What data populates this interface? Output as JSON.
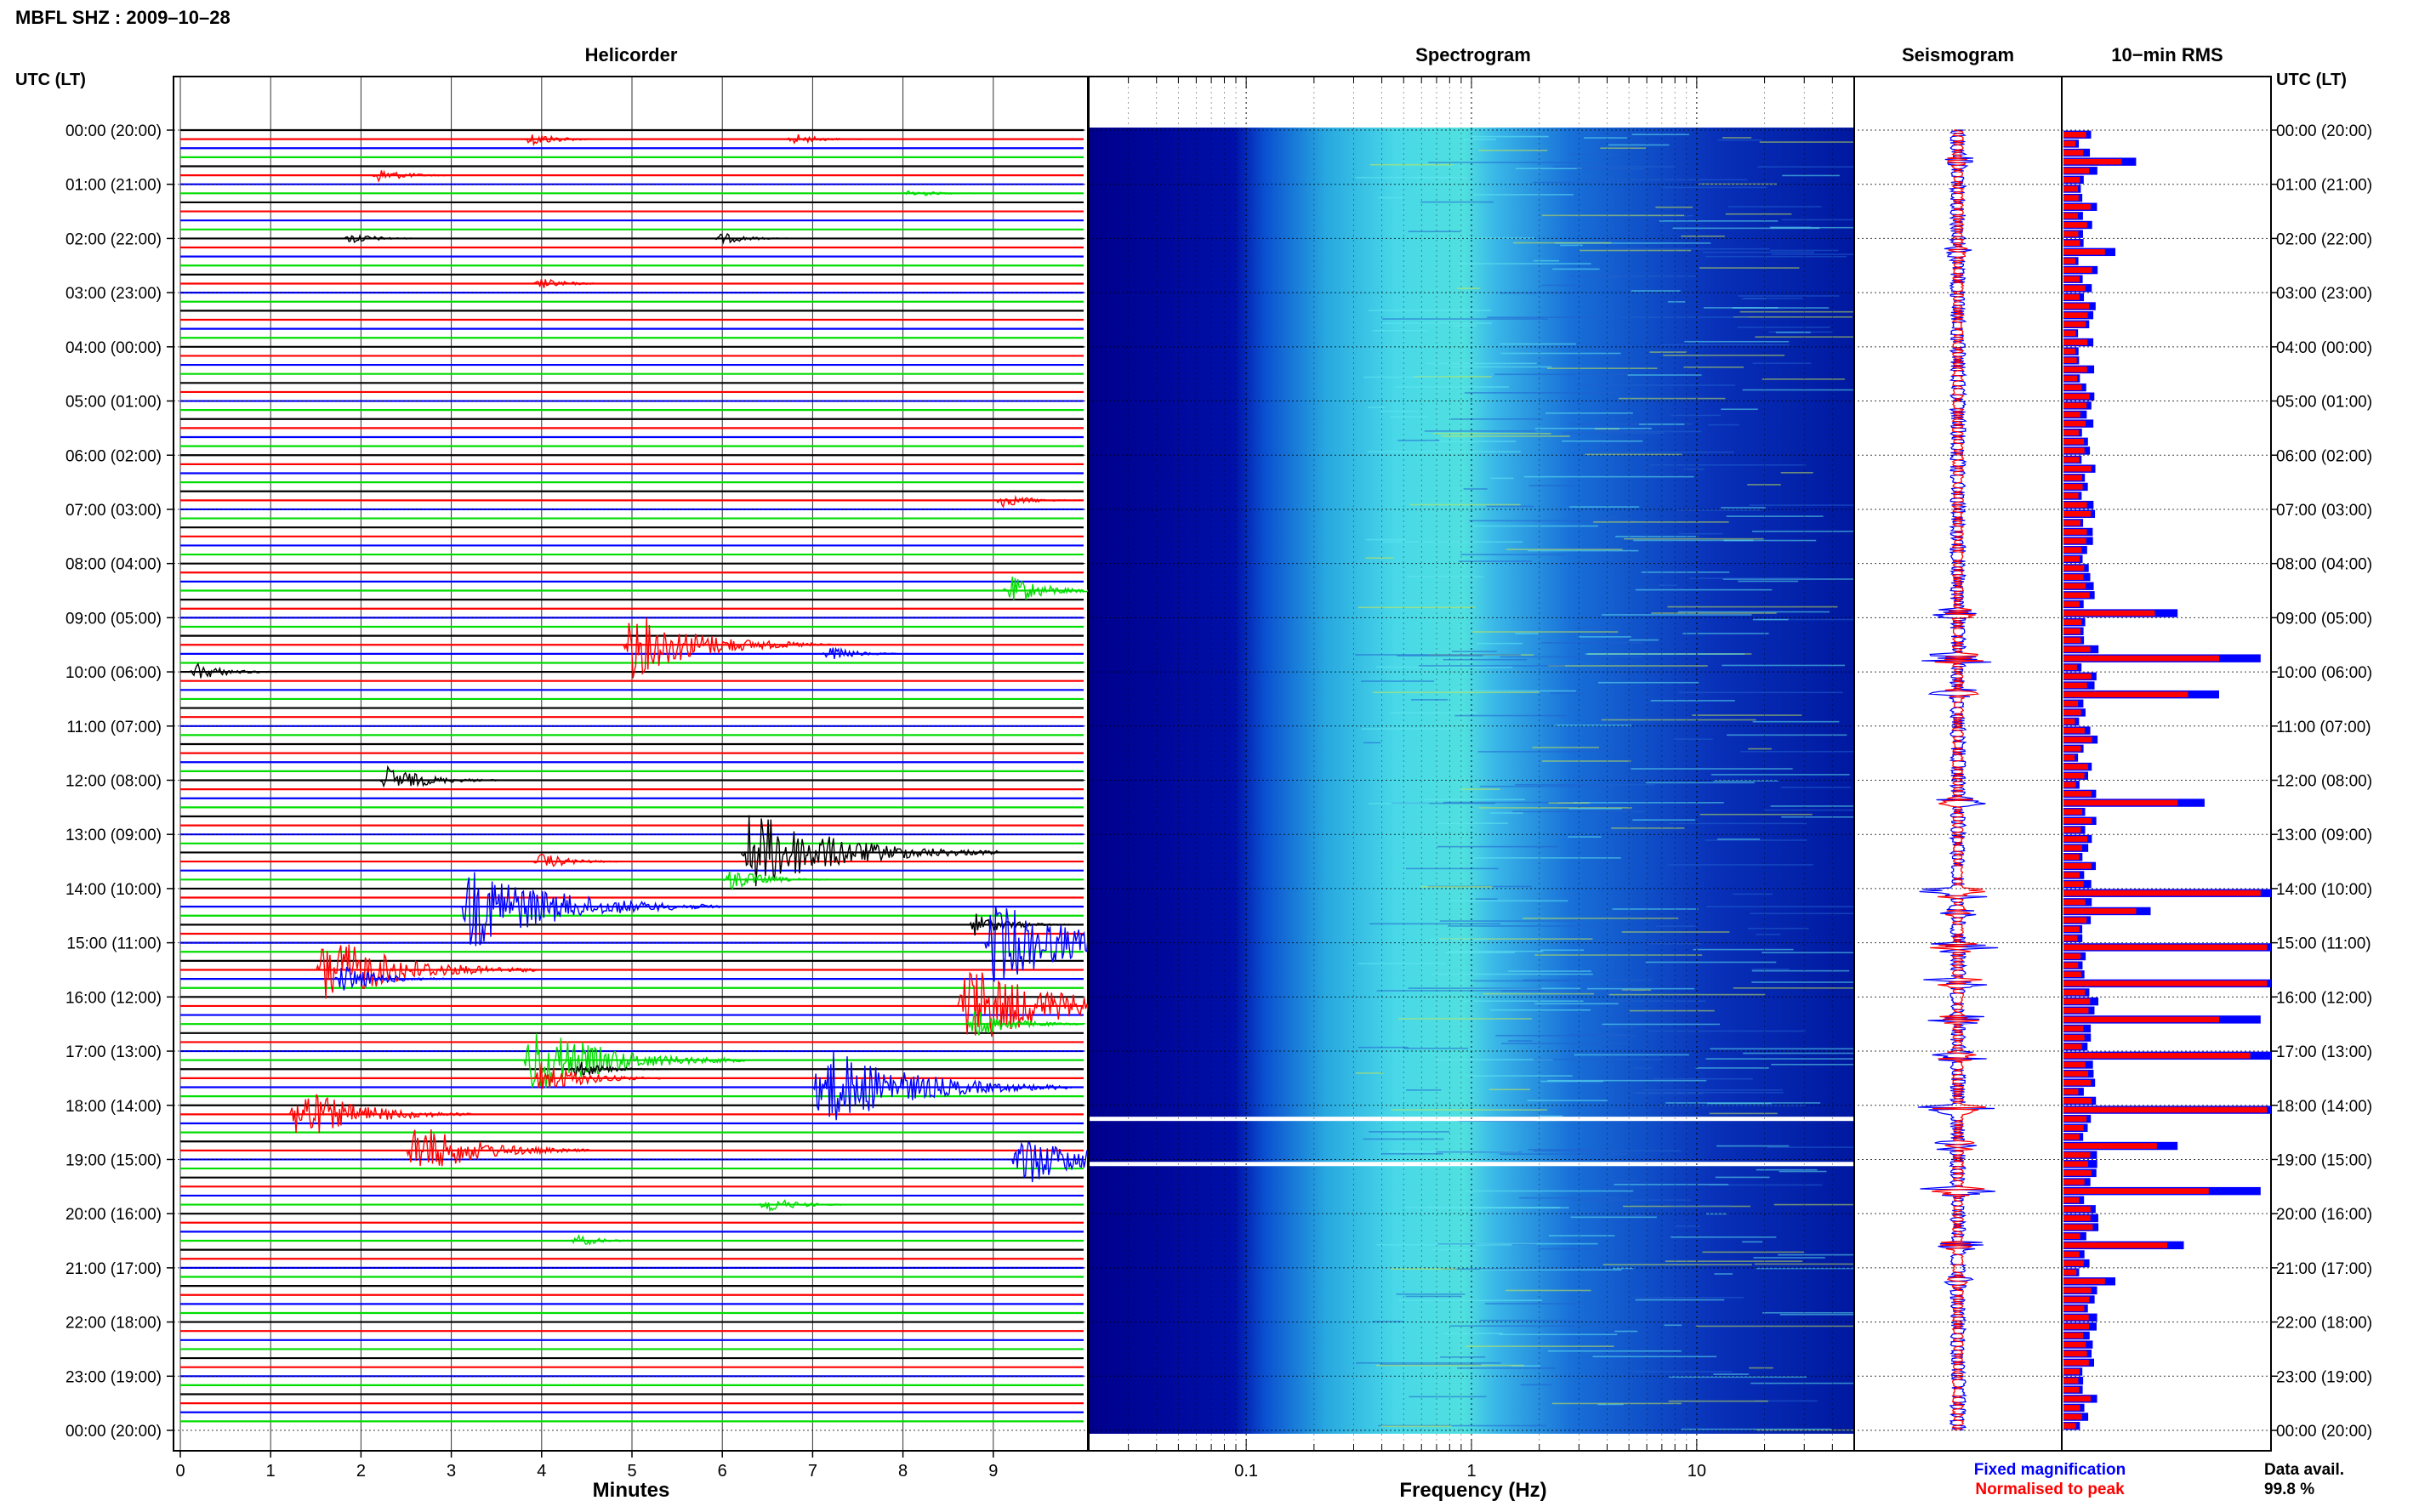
{
  "header": {
    "station_title": "MBFL SHZ : 2009–10–28",
    "utc_lt_left": "UTC (LT)",
    "utc_lt_right": "UTC (LT)"
  },
  "panels": {
    "helicorder": "Helicorder",
    "spectrogram": "Spectrogram",
    "seismogram": "Seismogram",
    "rms": "10−min RMS"
  },
  "footer": {
    "xlabel_helicorder": "Minutes",
    "xlabel_spectrogram": "Frequency (Hz)",
    "legend_fixed": "Fixed magnification",
    "legend_normalised": "Normalised to peak",
    "data_avail_label": "Data avail.",
    "data_avail_value": "99.8 %"
  },
  "colors": {
    "trace_black": "#000000",
    "trace_red": "#ff0000",
    "trace_blue": "#0000ff",
    "trace_green": "#00dd00",
    "spectrogram_low": "#00008c",
    "spectrogram_high": "#40e0e8",
    "rms_fixed": "#0000ff",
    "rms_normalised": "#ff0000"
  },
  "chart_data": {
    "type": "heatmap",
    "y_tick_labels": [
      "00:00 (20:00)",
      "01:00 (21:00)",
      "02:00 (22:00)",
      "03:00 (23:00)",
      "04:00 (00:00)",
      "05:00 (01:00)",
      "06:00 (02:00)",
      "07:00 (03:00)",
      "08:00 (04:00)",
      "09:00 (05:00)",
      "10:00 (06:00)",
      "11:00 (07:00)",
      "12:00 (08:00)",
      "13:00 (09:00)",
      "14:00 (10:00)",
      "15:00 (11:00)",
      "16:00 (12:00)",
      "17:00 (13:00)",
      "18:00 (14:00)",
      "19:00 (15:00)",
      "20:00 (16:00)",
      "21:00 (17:00)",
      "22:00 (18:00)",
      "23:00 (19:00)",
      "00:00 (20:00)"
    ],
    "helicorder": {
      "xlim": [
        0,
        10
      ],
      "x_tick_labels": [
        "0",
        "1",
        "2",
        "3",
        "4",
        "5",
        "6",
        "7",
        "8",
        "9"
      ],
      "lines_per_hour": 6,
      "trace_color_cycle": [
        "black",
        "red",
        "blue",
        "green"
      ],
      "events": [
        {
          "line": 1,
          "minute": 3.9,
          "amp": 0.25
        },
        {
          "line": 1,
          "minute": 6.8,
          "amp": 0.2
        },
        {
          "line": 5,
          "minute": 2.2,
          "amp": 0.25
        },
        {
          "line": 7,
          "minute": 8.1,
          "amp": 0.15
        },
        {
          "line": 12,
          "minute": 1.9,
          "amp": 0.2
        },
        {
          "line": 12,
          "minute": 6.0,
          "amp": 0.2
        },
        {
          "line": 17,
          "minute": 4.0,
          "amp": 0.2
        },
        {
          "line": 41,
          "minute": 9.1,
          "amp": 0.25
        },
        {
          "line": 51,
          "minute": 9.2,
          "amp": 0.5
        },
        {
          "line": 57,
          "minute": 5.0,
          "amp": 1.2
        },
        {
          "line": 58,
          "minute": 7.2,
          "amp": 0.25
        },
        {
          "line": 60,
          "minute": 0.2,
          "amp": 0.3
        },
        {
          "line": 72,
          "minute": 2.3,
          "amp": 0.5
        },
        {
          "line": 80,
          "minute": 6.3,
          "amp": 1.6
        },
        {
          "line": 81,
          "minute": 4.0,
          "amp": 0.3
        },
        {
          "line": 83,
          "minute": 6.1,
          "amp": 0.4
        },
        {
          "line": 86,
          "minute": 3.2,
          "amp": 1.6
        },
        {
          "line": 88,
          "minute": 8.8,
          "amp": 0.4
        },
        {
          "line": 90,
          "minute": 9.0,
          "amp": 1.6
        },
        {
          "line": 93,
          "minute": 1.6,
          "amp": 1.3
        },
        {
          "line": 94,
          "minute": 1.8,
          "amp": 0.5
        },
        {
          "line": 97,
          "minute": 8.7,
          "amp": 1.6
        },
        {
          "line": 99,
          "minute": 8.8,
          "amp": 0.5
        },
        {
          "line": 103,
          "minute": 3.9,
          "amp": 1.3
        },
        {
          "line": 104,
          "minute": 4.4,
          "amp": 0.3
        },
        {
          "line": 105,
          "minute": 4.0,
          "amp": 0.6
        },
        {
          "line": 106,
          "minute": 7.1,
          "amp": 1.6
        },
        {
          "line": 109,
          "minute": 1.3,
          "amp": 1.0
        },
        {
          "line": 113,
          "minute": 2.6,
          "amp": 1.0
        },
        {
          "line": 114,
          "minute": 9.3,
          "amp": 1.0
        },
        {
          "line": 119,
          "minute": 6.5,
          "amp": 0.3
        },
        {
          "line": 123,
          "minute": 4.4,
          "amp": 0.2
        }
      ]
    },
    "spectrogram": {
      "x_scale": "log",
      "xlim": [
        0.02,
        50
      ],
      "x_tick_labels": [
        "0.1",
        "1",
        "10"
      ],
      "energy_band_hz": [
        0.3,
        8
      ],
      "gaps_utc": [
        "18:15",
        "19:05"
      ]
    },
    "seismogram": {
      "series": [
        {
          "name": "Fixed magnification",
          "color": "blue"
        },
        {
          "name": "Normalised to peak",
          "color": "red"
        }
      ]
    },
    "rms_10min": {
      "bins": 144,
      "peak_bins": [
        {
          "bin": 3,
          "fixed": 0.35,
          "normalised": 0.28
        },
        {
          "bin": 13,
          "fixed": 0.25,
          "normalised": 0.2
        },
        {
          "bin": 53,
          "fixed": 0.55,
          "normalised": 0.44
        },
        {
          "bin": 58,
          "fixed": 0.95,
          "normalised": 0.75
        },
        {
          "bin": 62,
          "fixed": 0.75,
          "normalised": 0.6
        },
        {
          "bin": 74,
          "fixed": 0.68,
          "normalised": 0.55
        },
        {
          "bin": 84,
          "fixed": 1.0,
          "normalised": 0.95
        },
        {
          "bin": 86,
          "fixed": 0.42,
          "normalised": 0.35
        },
        {
          "bin": 90,
          "fixed": 1.0,
          "normalised": 0.98
        },
        {
          "bin": 94,
          "fixed": 1.0,
          "normalised": 0.98
        },
        {
          "bin": 98,
          "fixed": 0.95,
          "normalised": 0.75
        },
        {
          "bin": 102,
          "fixed": 1.0,
          "normalised": 0.9
        },
        {
          "bin": 108,
          "fixed": 1.0,
          "normalised": 0.98
        },
        {
          "bin": 112,
          "fixed": 0.55,
          "normalised": 0.45
        },
        {
          "bin": 117,
          "fixed": 0.95,
          "normalised": 0.7
        },
        {
          "bin": 123,
          "fixed": 0.58,
          "normalised": 0.5
        },
        {
          "bin": 127,
          "fixed": 0.25,
          "normalised": 0.2
        }
      ]
    }
  }
}
